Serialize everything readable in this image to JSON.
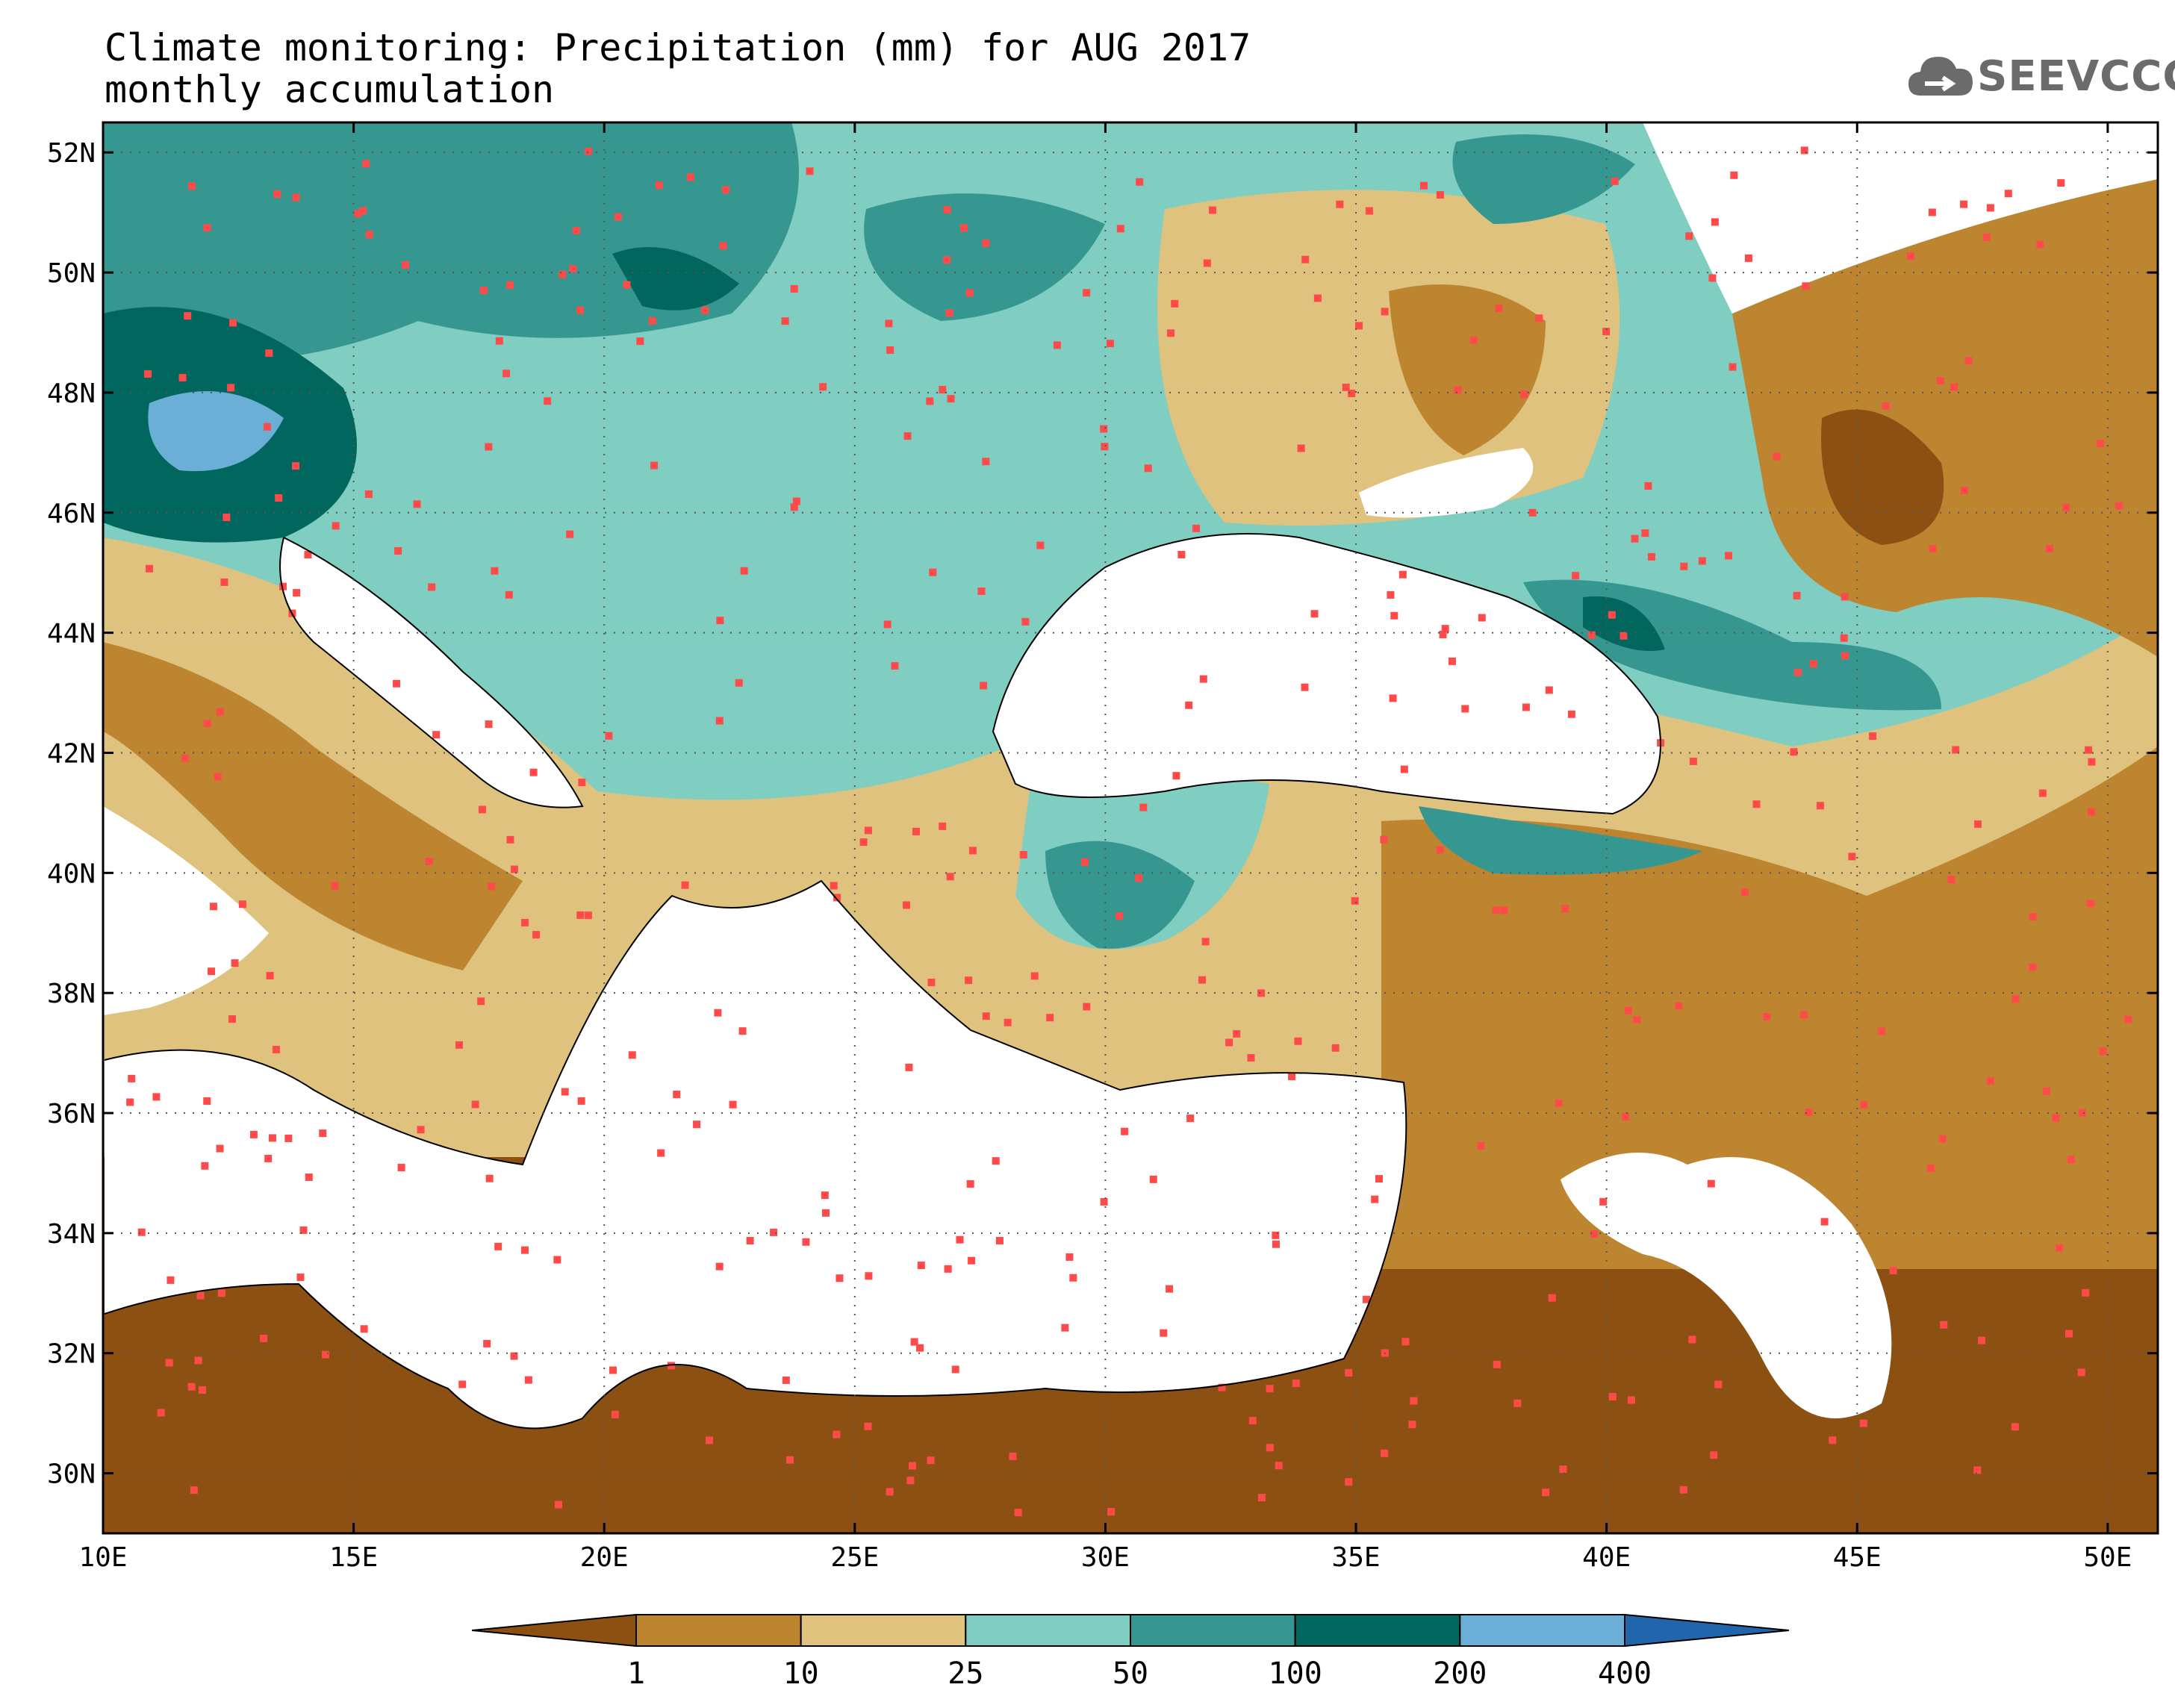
{
  "title": {
    "line1": "Climate monitoring: Precipitation (mm) for AUG 2017",
    "line2": "monthly accumulation"
  },
  "logo": {
    "text": "SEEVCCC",
    "icon": "cloud-icon"
  },
  "map": {
    "lon_range": [
      10,
      51
    ],
    "lat_range": [
      29,
      52.5
    ],
    "lat_ticks": [
      "52N",
      "50N",
      "48N",
      "46N",
      "44N",
      "42N",
      "40N",
      "38N",
      "36N",
      "34N",
      "32N",
      "30N"
    ],
    "lon_ticks": [
      "10E",
      "15E",
      "20E",
      "25E",
      "30E",
      "35E",
      "40E",
      "45E",
      "50E"
    ],
    "gridlines": "dotted",
    "station_color": "#ff4a4a"
  },
  "colorbar": {
    "labels": [
      "1",
      "10",
      "25",
      "50",
      "100",
      "200",
      "400"
    ],
    "colors": [
      "#8c5112",
      "#bd8530",
      "#dfc27e",
      "#80cdc1",
      "#35978f",
      "#01665e",
      "#6baed6",
      "#2166ac"
    ]
  }
}
